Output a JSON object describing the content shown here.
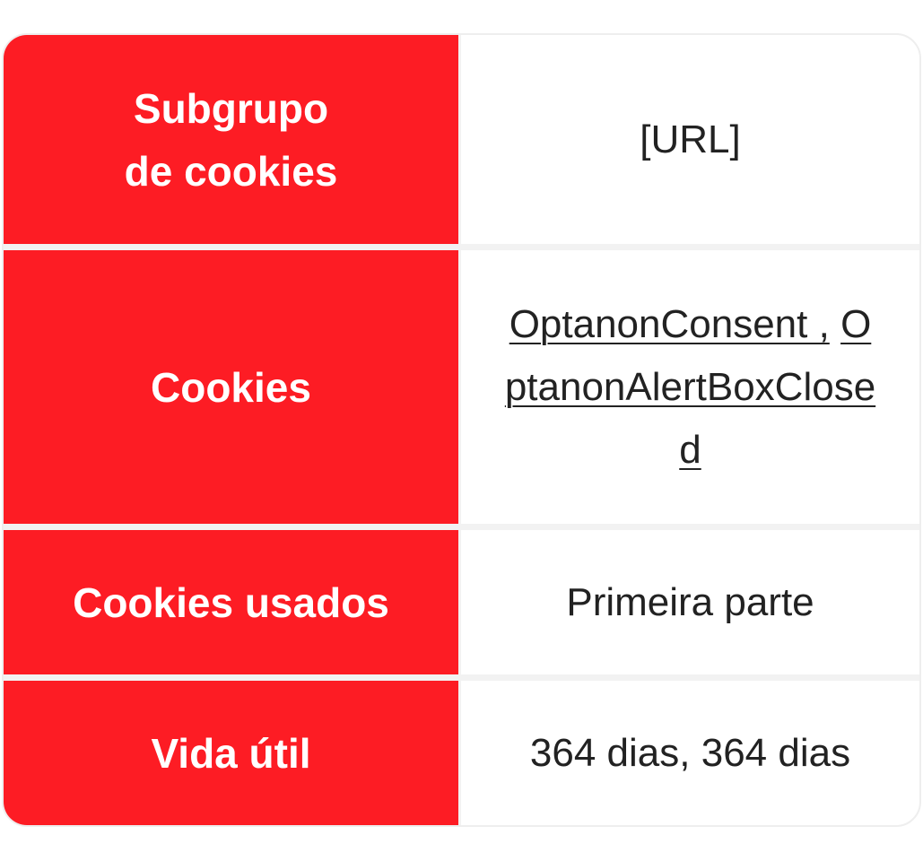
{
  "colors": {
    "header_bg": "#fd1c24",
    "header_text": "#ffffff",
    "value_text": "#222222",
    "divider": "#f2f2f2"
  },
  "rows": [
    {
      "label": "Subgrupo de cookies",
      "value": "[URL]"
    },
    {
      "label": "Cookies",
      "links": [
        "OptanonConsent ,",
        "OptanonAlertBoxClosed"
      ]
    },
    {
      "label": "Cookies usados",
      "value": "Primeira parte"
    },
    {
      "label": "Vida útil",
      "value": "364 dias, 364 dias"
    }
  ]
}
